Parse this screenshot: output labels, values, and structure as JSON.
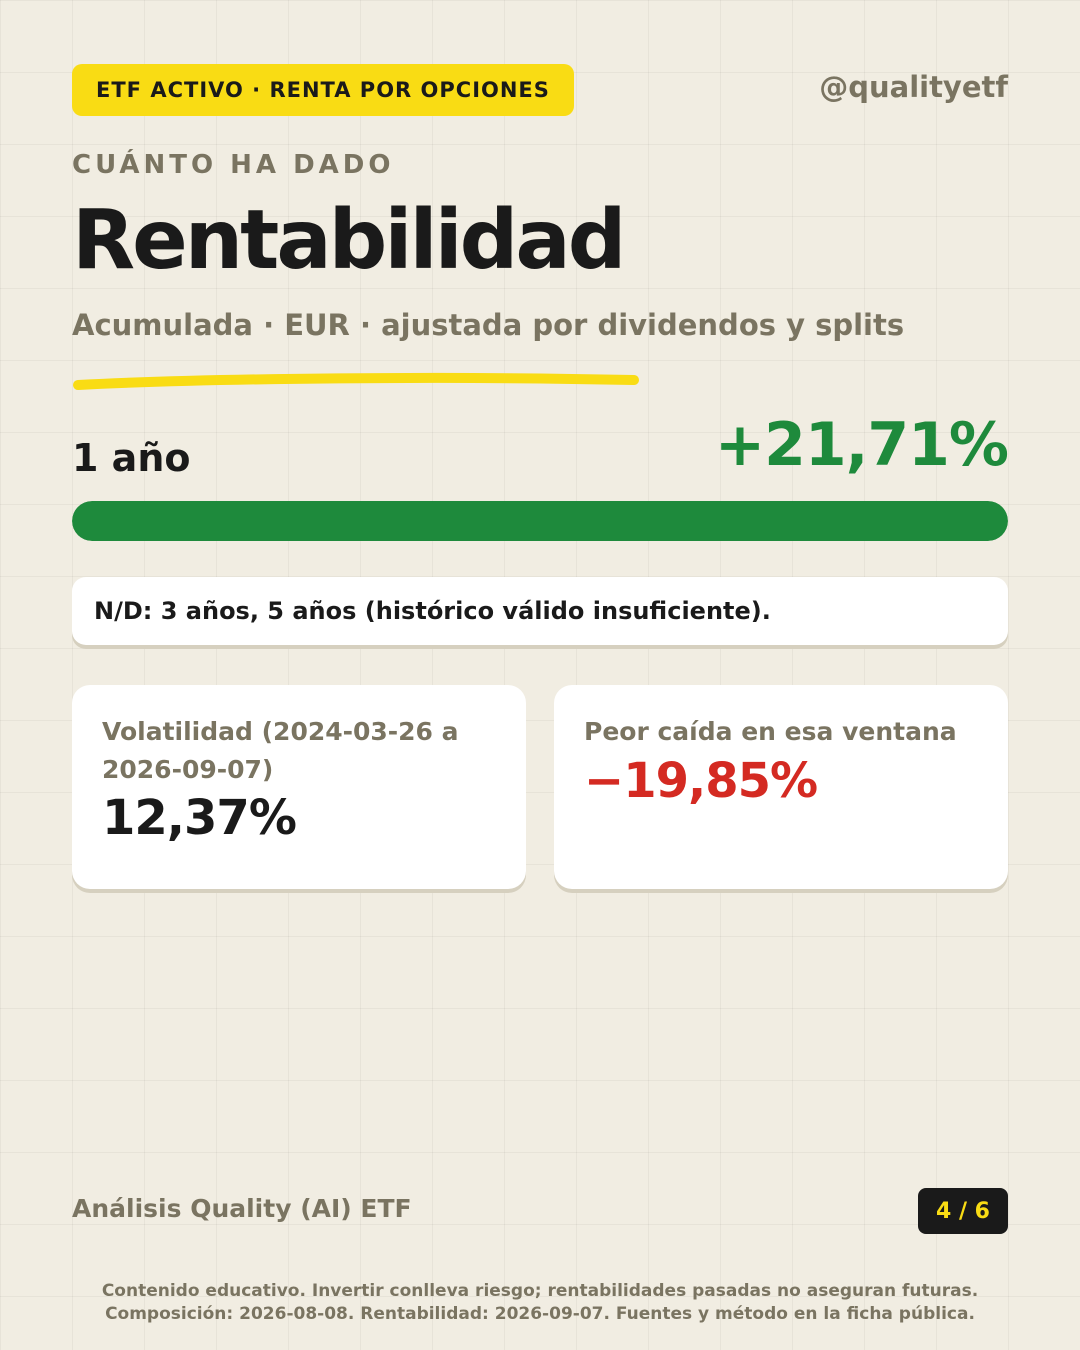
{
  "header": {
    "tag": "ETF ACTIVO · RENTA POR OPCIONES",
    "handle": "@qualityetf"
  },
  "hero": {
    "eyebrow": "CUÁNTO HA DADO",
    "title": "Rentabilidad",
    "subtitle": "Acumulada · EUR · ajustada por dividendos y splits"
  },
  "performance": {
    "period_label": "1 año",
    "value": "+21,71%",
    "bar_fill_percent": 100
  },
  "note": "N/D: 3 años, 5 años (histórico válido insuficiente).",
  "cards": [
    {
      "label": "Volatilidad (2024-03-26 a 2026-09-07)",
      "value": "12,37%"
    },
    {
      "label": "Peor caída en esa ventana",
      "value": "−19,85%"
    }
  ],
  "footer": {
    "brand": "Análisis Quality (AI) ETF",
    "page": "4 / 6",
    "disclaimer_line1": "Contenido educativo. Invertir conlleva riesgo; rentabilidades pasadas no aseguran futuras.",
    "disclaimer_line2": "Composición: 2026-08-08. Rentabilidad: 2026-09-07. Fuentes y método en la ficha pública."
  },
  "colors": {
    "background": "#f1ede2",
    "accent_yellow": "#f9dc14",
    "positive": "#1e8a3c",
    "negative": "#d42a22",
    "muted": "#7a7461",
    "text": "#1a1a1a"
  }
}
